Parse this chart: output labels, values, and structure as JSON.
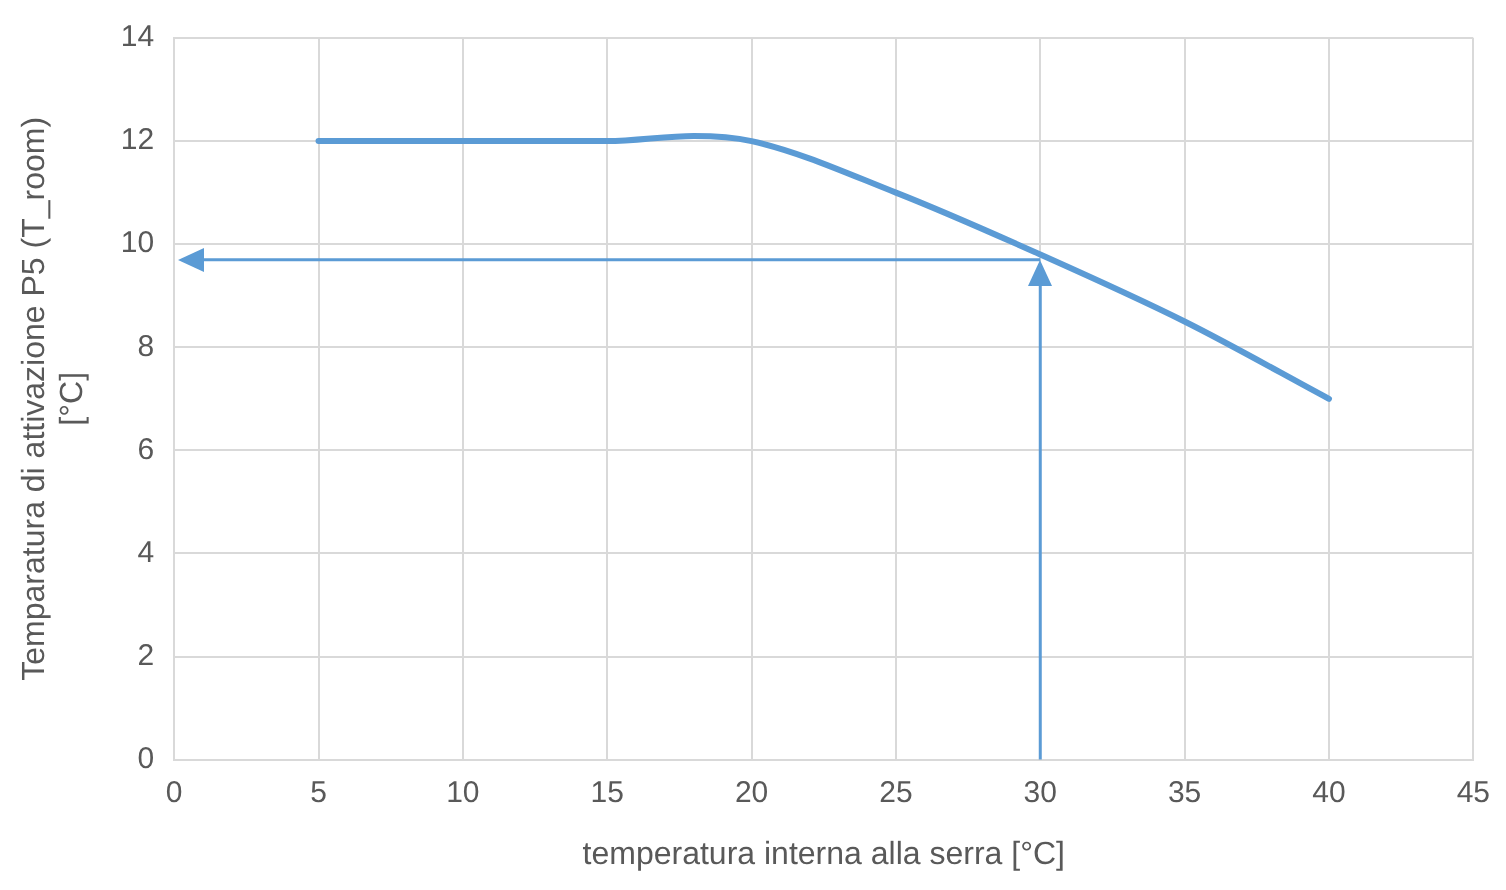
{
  "chart_data": {
    "type": "line",
    "xlabel": "temperatura interna alla serra [°C]",
    "ylabel": "Temparatura di attivazione P5 (T_room)\n[°C]",
    "x": [
      5,
      10,
      15,
      18,
      20,
      25,
      30,
      35,
      40
    ],
    "series": [
      {
        "color": "#5b9bd5",
        "values": [
          12,
          12,
          12,
          12.1,
          12,
          11,
          9.8,
          8.5,
          7
        ]
      }
    ],
    "xlim": [
      0,
      45
    ],
    "xticks": [
      0,
      5,
      10,
      15,
      20,
      25,
      30,
      35,
      40,
      45
    ],
    "ylim": [
      0,
      14
    ],
    "yticks": [
      0,
      2,
      4,
      6,
      8,
      10,
      12,
      14
    ],
    "grid": true,
    "legend": false,
    "marker": "none",
    "line_style": "solid",
    "ref_lines": [
      {
        "axis": "x",
        "value": 30,
        "color": "#5b9bd5"
      },
      {
        "axis": "y",
        "value": 9.7,
        "color": "#5b9bd5"
      }
    ]
  }
}
